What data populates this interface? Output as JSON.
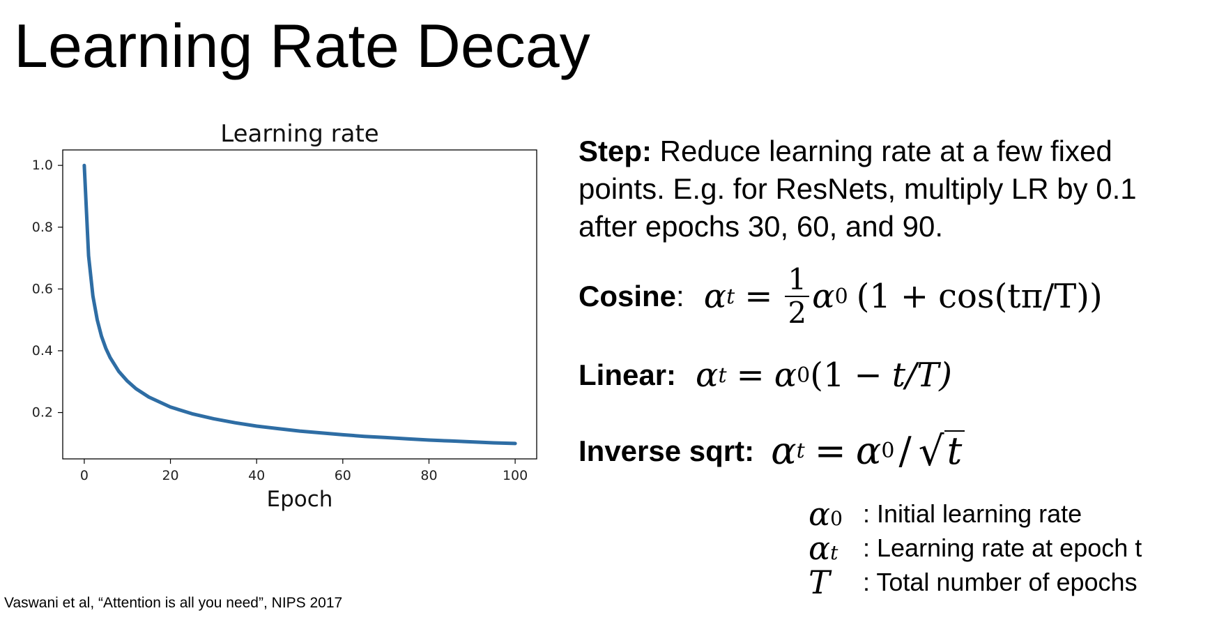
{
  "slide": {
    "title": "Learning Rate Decay",
    "citation": "Vaswani et al, “Attention is all you need”, NIPS 2017"
  },
  "step": {
    "label": "Step:",
    "text": " Reduce learning rate at a few fixed points. E.g. for ResNets, multiply LR by 0.1 after epochs 30, 60, and 90."
  },
  "formulas": {
    "cosine": {
      "label": "Cosine",
      "colon": ":",
      "lhs_symbol": "α",
      "lhs_sub": "t",
      "eq": "=",
      "frac_num": "1",
      "frac_den": "2",
      "rhs_symbol": "α",
      "rhs_sub": "0",
      "rhs_open": "(1",
      "plus": "+",
      "rhs_tail": "cos(tπ/T))"
    },
    "linear": {
      "label": "Linear:",
      "lhs_symbol": "α",
      "lhs_sub": "t",
      "eq": "=",
      "rhs_symbol": "α",
      "rhs_sub": "0",
      "rhs_open": "(1",
      "minus": "−",
      "rhs_tail": "t/T)"
    },
    "inverse_sqrt": {
      "label": "Inverse sqrt:",
      "lhs_symbol": "α",
      "lhs_sub": "t",
      "eq": "=",
      "rhs_symbol": "α",
      "rhs_sub": "0",
      "slash": "/",
      "radical": "√",
      "radicand": "t"
    }
  },
  "legend": [
    {
      "symbol": "α",
      "sub": "0",
      "text": ": Initial learning rate"
    },
    {
      "symbol": "α",
      "sub": "t",
      "text": ": Learning rate at epoch t"
    },
    {
      "symbol": "T",
      "sub": "",
      "text": ": Total number of epochs"
    }
  ],
  "chart_data": {
    "type": "line",
    "title": "Learning rate",
    "xlabel": "Epoch",
    "ylabel": "",
    "xlim": [
      -5,
      105
    ],
    "ylim": [
      0.05,
      1.05
    ],
    "xticks": [
      0,
      20,
      40,
      60,
      80,
      100
    ],
    "yticks": [
      0.2,
      0.4,
      0.6,
      0.8,
      1.0
    ],
    "ytick_labels": [
      "0.2",
      "0.4",
      "0.6",
      "0.8",
      "1.0"
    ],
    "grid": false,
    "line_color": "#2e6da4",
    "x": [
      0,
      1,
      2,
      3,
      4,
      5,
      6,
      8,
      10,
      12,
      15,
      20,
      25,
      30,
      35,
      40,
      45,
      50,
      55,
      60,
      65,
      70,
      75,
      80,
      85,
      90,
      95,
      100
    ],
    "y": [
      1.0,
      0.707,
      0.577,
      0.5,
      0.447,
      0.408,
      0.378,
      0.333,
      0.302,
      0.277,
      0.25,
      0.218,
      0.196,
      0.18,
      0.167,
      0.156,
      0.148,
      0.14,
      0.134,
      0.128,
      0.123,
      0.119,
      0.115,
      0.111,
      0.108,
      0.105,
      0.102,
      0.1
    ]
  }
}
